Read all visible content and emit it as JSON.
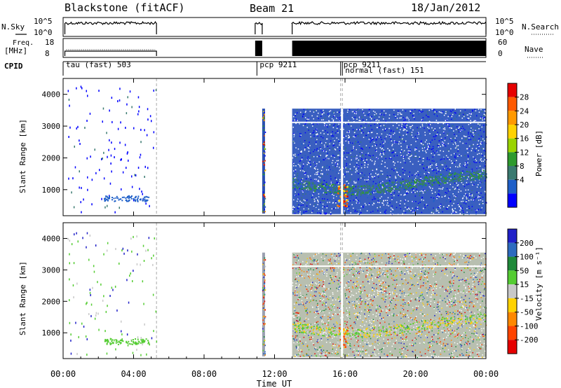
{
  "header": {
    "station": "Blackstone (fitACF)",
    "beam": "Beam 21",
    "date": "18/Jan/2012"
  },
  "chart_data": [
    {
      "type": "line",
      "panel": "nsky-nsearch",
      "left_label": "N.Sky",
      "right_label": "N.Search",
      "left_ticks": [
        "10^5",
        "10^0"
      ],
      "right_ticks": [
        "10^5",
        "10^0"
      ],
      "xlim_hours": [
        0,
        24
      ],
      "segments_hours": [
        [
          0.1,
          5.3
        ],
        [
          10.9,
          11.3
        ],
        [
          13.0,
          24.0
        ]
      ]
    },
    {
      "type": "line",
      "panel": "freq-nave",
      "left_label_top": "Freq.",
      "left_label_unit": "[MHz]",
      "right_label": "Nave",
      "left_ticks": [
        "18",
        "8"
      ],
      "right_ticks": [
        "60",
        "0"
      ],
      "xlim_hours": [
        0,
        24
      ],
      "segments_hours": [
        [
          0.1,
          5.3
        ],
        [
          10.9,
          11.3
        ],
        [
          13.0,
          24.0
        ]
      ]
    },
    {
      "type": "table",
      "panel": "cpid",
      "label": "CPID",
      "modes": [
        {
          "start_hour": 0.0,
          "text": "tau (fast) 503"
        },
        {
          "start_hour": 11.0,
          "text": "pcp 9211"
        },
        {
          "start_hour": 15.75,
          "text": "pcp 9211"
        },
        {
          "start_hour": 15.85,
          "text": "normal (fast) 151"
        }
      ]
    },
    {
      "type": "heatmap",
      "panel": "power",
      "ylabel": "Slant Range [km]",
      "yticks": [
        1000,
        2000,
        3000,
        4000
      ],
      "ylim": [
        180,
        4500
      ],
      "xlim_hours": [
        0,
        24
      ],
      "colorbar_label": "Power [dB]",
      "colorbar_ticks": [
        "28",
        "24",
        "20",
        "16",
        "12",
        "8",
        "4"
      ],
      "colors": [
        "#e60000",
        "#ff5a00",
        "#ff9900",
        "#ffd200",
        "#9ad400",
        "#2e9a2e",
        "#3a7a70",
        "#1e5fc8",
        "#0000ff"
      ]
    },
    {
      "type": "heatmap",
      "panel": "velocity",
      "ylabel": "Slant Range [km]",
      "yticks": [
        1000,
        2000,
        3000,
        4000
      ],
      "ylim": [
        180,
        4500
      ],
      "xlim_hours": [
        0,
        24
      ],
      "colorbar_label": "Velocity [m s⁻¹]",
      "colorbar_ticks": [
        "200",
        "100",
        "50",
        "15",
        "-15",
        "-50",
        "-100",
        "-200"
      ],
      "colors": [
        "#2020c8",
        "#2d6bbf",
        "#1f8a3a",
        "#55cc33",
        "#c8c8c8",
        "#ffd200",
        "#ff8800",
        "#ff4400",
        "#e60000"
      ],
      "xlabel": "Time UT",
      "xticks": [
        "00:00",
        "04:00",
        "08:00",
        "12:00",
        "16:00",
        "20:00",
        "00:00"
      ]
    }
  ]
}
